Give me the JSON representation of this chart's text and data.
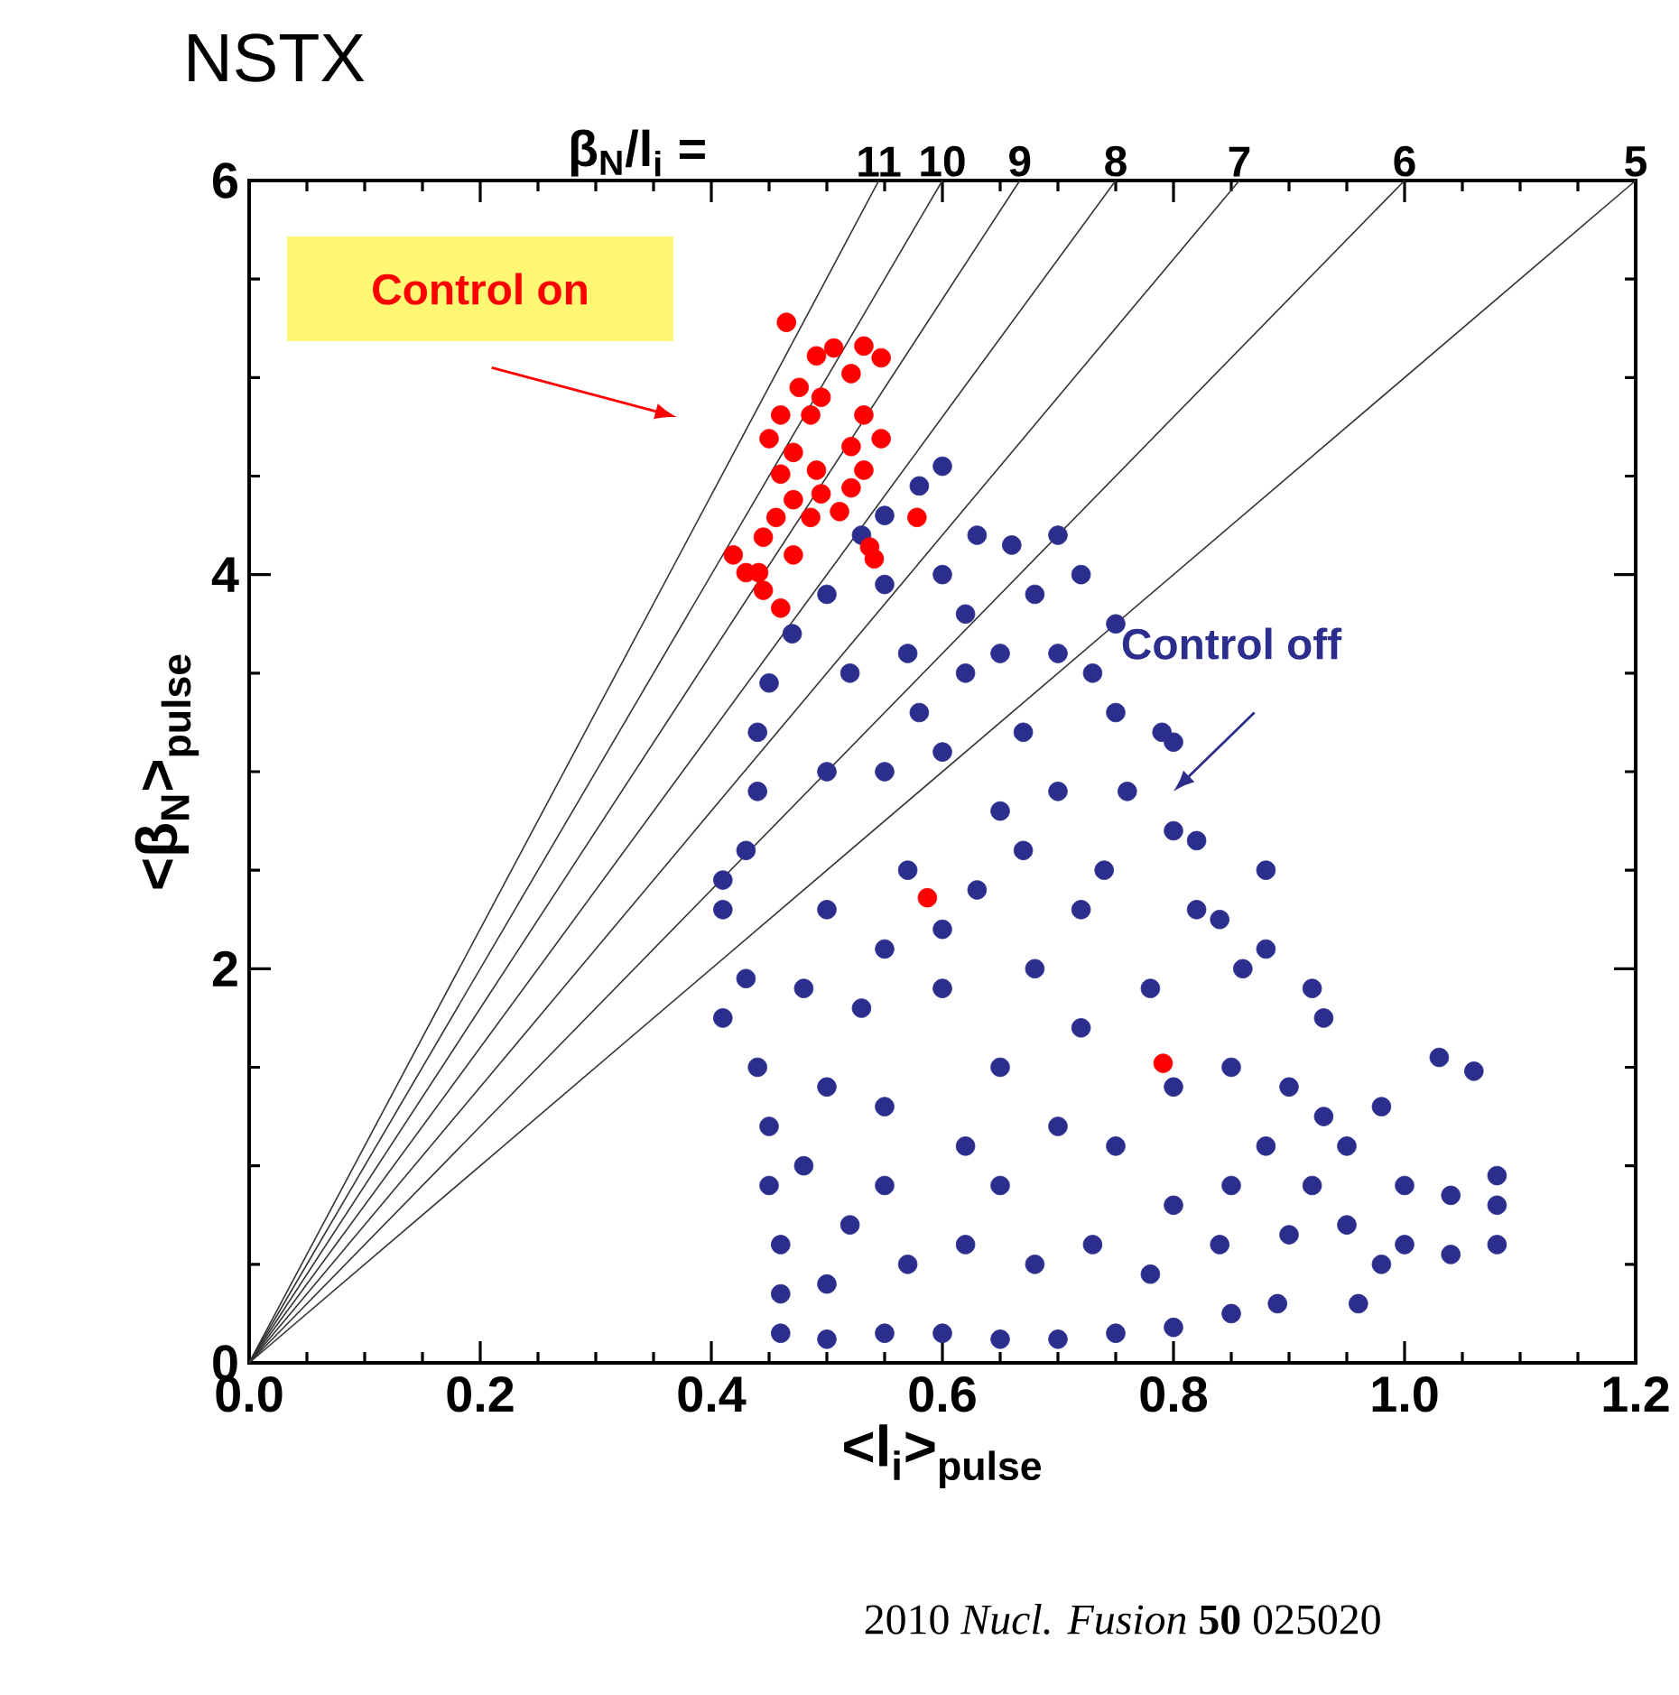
{
  "chart_data": {
    "type": "scatter",
    "title": "NSTX",
    "xlabel": "<l$_{i}$>$_{pulse}$",
    "ylabel": "<β$_{N}$>$_{pulse}$",
    "xlim": [
      0,
      1.2
    ],
    "ylim": [
      0,
      6
    ],
    "xticks": [
      {
        "value": 0,
        "label": "0.0"
      },
      {
        "value": 0.2,
        "label": "0.2"
      },
      {
        "value": 0.4,
        "label": "0.4"
      },
      {
        "value": 0.6,
        "label": "0.6"
      },
      {
        "value": 0.8,
        "label": "0.8"
      },
      {
        "value": 1.0,
        "label": "1.0"
      },
      {
        "value": 1.2,
        "label": "1.2"
      }
    ],
    "yticks": [
      0,
      2,
      4,
      6
    ],
    "grid": false,
    "legend": false,
    "marker": "circle",
    "annotations": [
      "β$_{N}$/l$_{i}$ =",
      {
        "text": "11",
        "x": 0.545,
        "y": 6
      },
      {
        "text": "10",
        "x": 0.6,
        "y": 6
      },
      {
        "text": "9",
        "x": 0.667,
        "y": 6
      },
      {
        "text": "8",
        "x": 0.75,
        "y": 6
      },
      {
        "text": "7",
        "x": 0.857,
        "y": 6
      },
      {
        "text": "6",
        "x": 1.0,
        "y": 6
      },
      {
        "text": "5",
        "x": 1.2,
        "y": 6
      },
      "2010 *Nucl. Fusion* **50** 025020"
    ],
    "series": [
      {
        "type": "line",
        "marker": "none",
        "color": "#333333",
        "x": [
          0,
          0.545
        ],
        "values": [
          0,
          6
        ]
      },
      {
        "type": "line",
        "marker": "none",
        "color": "#333333",
        "x": [
          0,
          0.6
        ],
        "values": [
          0,
          6
        ]
      },
      {
        "type": "line",
        "marker": "none",
        "color": "#333333",
        "x": [
          0,
          0.667
        ],
        "values": [
          0,
          6
        ]
      },
      {
        "type": "line",
        "marker": "none",
        "color": "#333333",
        "x": [
          0,
          0.75
        ],
        "values": [
          0,
          6
        ]
      },
      {
        "type": "line",
        "marker": "none",
        "color": "#333333",
        "x": [
          0,
          0.857
        ],
        "values": [
          0,
          6
        ]
      },
      {
        "type": "line",
        "marker": "none",
        "color": "#333333",
        "x": [
          0,
          1.0
        ],
        "values": [
          0,
          6
        ]
      },
      {
        "type": "line",
        "marker": "none",
        "color": "#333333",
        "x": [
          0,
          1.2
        ],
        "values": [
          0,
          6
        ]
      },
      {
        "name": "Control off",
        "color": "#2b2e8c",
        "x": [
          0.6,
          0.58,
          0.55,
          0.53,
          0.63,
          0.66,
          0.7,
          0.72,
          0.75,
          0.68,
          0.6,
          0.55,
          0.5,
          0.47,
          0.45,
          0.44,
          0.44,
          0.43,
          0.41,
          0.41,
          0.41,
          0.43,
          0.44,
          0.45,
          0.45,
          0.46,
          0.46,
          0.46,
          0.5,
          0.55,
          0.6,
          0.65,
          0.7,
          0.75,
          0.8,
          0.85,
          0.89,
          0.96,
          1.0,
          1.04,
          1.08,
          1.08,
          1.08,
          1.04,
          1.0,
          1.03,
          1.06,
          0.98,
          0.95,
          0.93,
          0.9,
          0.93,
          0.92,
          0.88,
          0.88,
          0.86,
          0.84,
          0.82,
          0.8,
          0.82,
          0.8,
          0.79,
          0.76,
          0.74,
          0.75,
          0.73,
          0.7,
          0.67,
          0.65,
          0.62,
          0.57,
          0.52,
          0.5,
          0.55,
          0.6,
          0.65,
          0.7,
          0.72,
          0.68,
          0.63,
          0.57,
          0.5,
          0.48,
          0.53,
          0.6,
          0.65,
          0.72,
          0.78,
          0.8,
          0.85,
          0.88,
          0.85,
          0.8,
          0.75,
          0.7,
          0.62,
          0.55,
          0.5,
          0.48,
          0.52,
          0.57,
          0.62,
          0.68,
          0.73,
          0.78,
          0.84,
          0.9,
          0.95,
          0.92,
          0.98,
          0.5,
          0.55,
          0.65,
          0.6,
          0.55,
          0.67,
          0.58,
          0.62
        ],
        "values": [
          4.55,
          4.45,
          4.3,
          4.2,
          4.2,
          4.15,
          4.2,
          4.0,
          3.75,
          3.9,
          4.0,
          3.95,
          3.9,
          3.7,
          3.45,
          3.2,
          2.9,
          2.6,
          2.45,
          2.3,
          1.75,
          1.95,
          1.5,
          1.2,
          0.9,
          0.6,
          0.35,
          0.15,
          0.12,
          0.15,
          0.15,
          0.12,
          0.12,
          0.15,
          0.18,
          0.25,
          0.3,
          0.3,
          0.6,
          0.55,
          0.6,
          0.8,
          0.95,
          0.85,
          0.9,
          1.55,
          1.48,
          1.3,
          1.1,
          1.25,
          1.4,
          1.75,
          1.9,
          2.1,
          2.5,
          2.0,
          2.25,
          2.65,
          2.7,
          2.3,
          3.15,
          3.2,
          2.9,
          2.5,
          3.3,
          3.5,
          3.6,
          3.2,
          3.6,
          3.8,
          3.6,
          3.5,
          3.0,
          3.0,
          3.1,
          2.8,
          2.9,
          2.3,
          2.0,
          2.4,
          2.5,
          2.3,
          1.9,
          1.8,
          1.9,
          1.5,
          1.7,
          1.9,
          1.4,
          1.5,
          1.1,
          0.9,
          0.8,
          1.1,
          1.2,
          1.1,
          1.3,
          1.4,
          1.0,
          0.7,
          0.5,
          0.6,
          0.5,
          0.6,
          0.45,
          0.6,
          0.65,
          0.7,
          0.9,
          0.5,
          0.4,
          0.9,
          0.9,
          2.2,
          2.1,
          2.6,
          3.3,
          3.5
        ]
      },
      {
        "name": "Control on",
        "color": "#ff0000",
        "x": [
          0.465,
          0.491,
          0.506,
          0.532,
          0.547,
          0.521,
          0.476,
          0.495,
          0.486,
          0.532,
          0.46,
          0.547,
          0.521,
          0.45,
          0.471,
          0.532,
          0.46,
          0.491,
          0.471,
          0.495,
          0.521,
          0.456,
          0.486,
          0.511,
          0.419,
          0.445,
          0.441,
          0.471,
          0.445,
          0.537,
          0.578,
          0.541,
          0.43,
          0.46,
          0.587,
          0.791
        ],
        "values": [
          5.28,
          5.11,
          5.15,
          5.16,
          5.1,
          5.02,
          4.95,
          4.9,
          4.81,
          4.81,
          4.81,
          4.69,
          4.65,
          4.69,
          4.62,
          4.53,
          4.51,
          4.53,
          4.38,
          4.41,
          4.44,
          4.29,
          4.29,
          4.32,
          4.1,
          4.19,
          4.01,
          4.1,
          3.92,
          4.14,
          4.29,
          4.08,
          4.01,
          3.83,
          2.36,
          1.52
        ]
      }
    ]
  }
}
